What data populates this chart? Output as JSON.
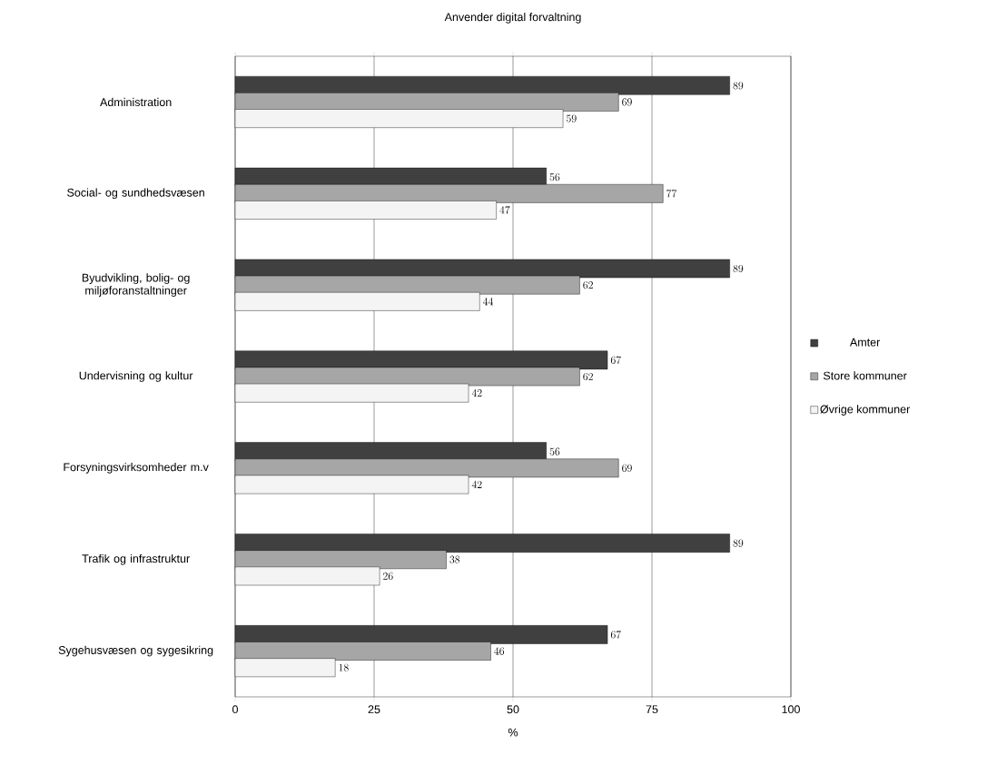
{
  "chart_data": {
    "type": "bar",
    "orientation": "horizontal",
    "title": "Anvender digital forvaltning",
    "xlabel": "%",
    "categories": [
      "Administration",
      "Social- og sundhedsvæsen",
      "Byudvikling, bolig- og miljøforanstaltninger",
      "Undervisning og kultur",
      "Forsyningsvirksomheder m.v",
      "Trafik og infrastruktur",
      "Sygehusvæsen og sygesikring"
    ],
    "series": [
      {
        "name": "Amter",
        "color": "#404040",
        "values": [
          89,
          56,
          89,
          67,
          56,
          89,
          67
        ]
      },
      {
        "name": "Store kommuner",
        "color": "#a6a6a6",
        "values": [
          69,
          77,
          62,
          62,
          69,
          38,
          46
        ]
      },
      {
        "name": "Øvrige kommuner",
        "color": "#f4f4f4",
        "values": [
          59,
          47,
          44,
          42,
          42,
          26,
          18
        ]
      }
    ],
    "xlim": [
      0,
      100
    ],
    "xticks": [
      0,
      25,
      50,
      75,
      100
    ],
    "grid": "x",
    "legend": "right",
    "data_labels": true
  }
}
